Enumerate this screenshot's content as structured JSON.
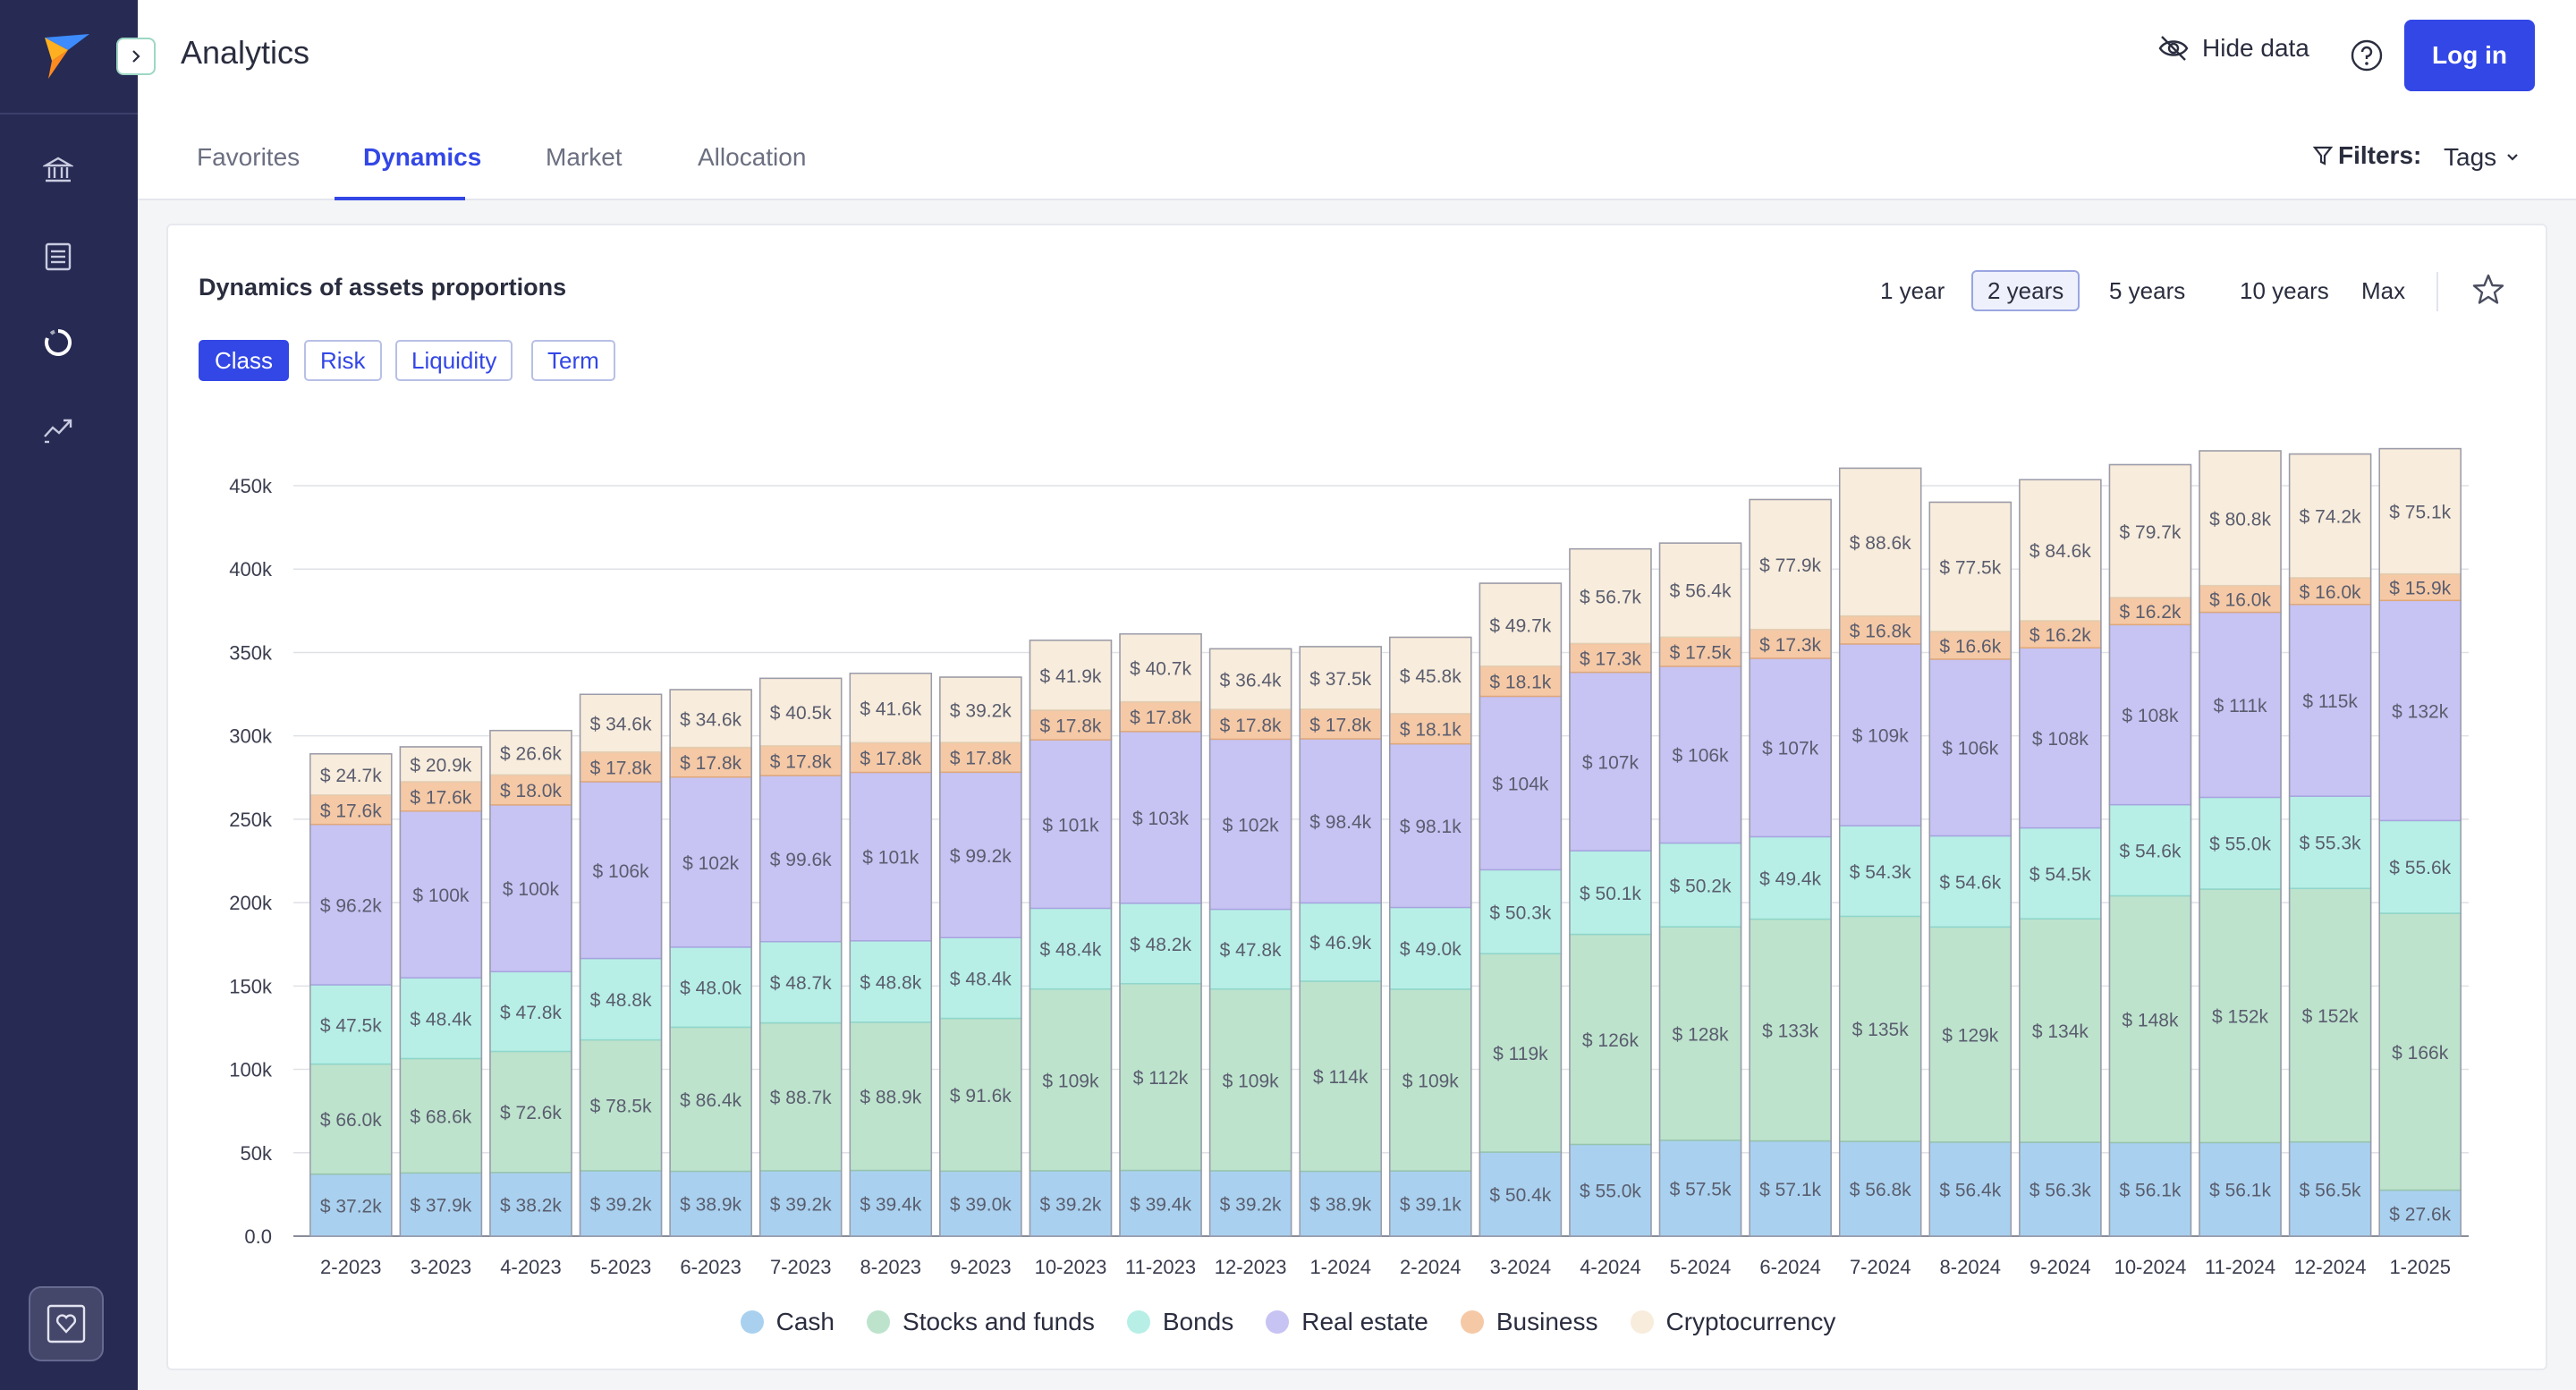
{
  "header": {
    "title": "Analytics",
    "hide_data": "Hide data",
    "login": "Log in"
  },
  "tabs": [
    {
      "label": "Favorites",
      "active": false
    },
    {
      "label": "Dynamics",
      "active": true
    },
    {
      "label": "Market",
      "active": false
    },
    {
      "label": "Allocation",
      "active": false
    }
  ],
  "filters": {
    "label": "Filters:",
    "tags": "Tags"
  },
  "card": {
    "title": "Dynamics of assets proportions",
    "periods": [
      {
        "label": "1 year",
        "active": false
      },
      {
        "label": "2 years",
        "active": true
      },
      {
        "label": "5 years",
        "active": false
      },
      {
        "label": "10 years",
        "active": false
      },
      {
        "label": "Max",
        "active": false
      }
    ],
    "segments": [
      {
        "label": "Class",
        "active": true
      },
      {
        "label": "Risk",
        "active": false
      },
      {
        "label": "Liquidity",
        "active": false
      },
      {
        "label": "Term",
        "active": false
      }
    ]
  },
  "sidebar": {
    "icons": [
      "bank-icon",
      "list-icon",
      "pie-chart-icon",
      "trend-icon"
    ],
    "bottom_icon": "heart-shield-icon"
  },
  "colors": {
    "accent": "#3347e6",
    "sidebar": "#272a52",
    "series": [
      "#a9d1ef",
      "#bde3cd",
      "#b7efe6",
      "#c7c3f3",
      "#f5c9a6",
      "#f8ecdc"
    ]
  },
  "chart_data": {
    "type": "bar",
    "stacked": true,
    "categories": [
      "2-2023",
      "3-2023",
      "4-2023",
      "5-2023",
      "6-2023",
      "7-2023",
      "8-2023",
      "9-2023",
      "10-2023",
      "11-2023",
      "12-2023",
      "1-2024",
      "2-2024",
      "3-2024",
      "4-2024",
      "5-2024",
      "6-2024",
      "7-2024",
      "8-2024",
      "9-2024",
      "10-2024",
      "11-2024",
      "12-2024",
      "1-2025"
    ],
    "y_ticks": [
      "0.0",
      "50k",
      "100k",
      "150k",
      "200k",
      "250k",
      "300k",
      "350k",
      "400k",
      "450k"
    ],
    "ylim": [
      0,
      450000
    ],
    "grid": true,
    "legend": "bottom",
    "series": [
      {
        "name": "Cash",
        "values": [
          37200,
          37900,
          38200,
          39200,
          38900,
          39200,
          39400,
          39000,
          39200,
          39400,
          39200,
          38900,
          39100,
          50400,
          55000,
          57500,
          57100,
          56800,
          56400,
          56300,
          56100,
          56100,
          56500,
          27600
        ],
        "labels": [
          "$ 37.2k",
          "$ 37.9k",
          "$ 38.2k",
          "$ 39.2k",
          "$ 38.9k",
          "$ 39.2k",
          "$ 39.4k",
          "$ 39.0k",
          "$ 39.2k",
          "$ 39.4k",
          "$ 39.2k",
          "$ 38.9k",
          "$ 39.1k",
          "$ 50.4k",
          "$ 55.0k",
          "$ 57.5k",
          "$ 57.1k",
          "$ 56.8k",
          "$ 56.4k",
          "$ 56.3k",
          "$ 56.1k",
          "$ 56.1k",
          "$ 56.5k",
          "$ 27.6k"
        ]
      },
      {
        "name": "Stocks and funds",
        "values": [
          66000,
          68600,
          72600,
          78500,
          86400,
          88700,
          88900,
          91600,
          109000,
          112000,
          109000,
          114000,
          109000,
          119000,
          126000,
          128000,
          133000,
          135000,
          129000,
          134000,
          148000,
          152000,
          152000,
          166000
        ],
        "labels": [
          "$ 66.0k",
          "$ 68.6k",
          "$ 72.6k",
          "$ 78.5k",
          "$ 86.4k",
          "$ 88.7k",
          "$ 88.9k",
          "$ 91.6k",
          "$ 109k",
          "$ 112k",
          "$ 109k",
          "$ 114k",
          "$ 109k",
          "$ 119k",
          "$ 126k",
          "$ 128k",
          "$ 133k",
          "$ 135k",
          "$ 129k",
          "$ 134k",
          "$ 148k",
          "$ 152k",
          "$ 152k",
          "$ 166k"
        ]
      },
      {
        "name": "Bonds",
        "values": [
          47500,
          48400,
          47800,
          48800,
          48000,
          48700,
          48800,
          48400,
          48400,
          48200,
          47800,
          46900,
          49000,
          50300,
          50100,
          50200,
          49400,
          54300,
          54600,
          54500,
          54600,
          55000,
          55300,
          55600
        ],
        "labels": [
          "$ 47.5k",
          "$ 48.4k",
          "$ 47.8k",
          "$ 48.8k",
          "$ 48.0k",
          "$ 48.7k",
          "$ 48.8k",
          "$ 48.4k",
          "$ 48.4k",
          "$ 48.2k",
          "$ 47.8k",
          "$ 46.9k",
          "$ 49.0k",
          "$ 50.3k",
          "$ 50.1k",
          "$ 50.2k",
          "$ 49.4k",
          "$ 54.3k",
          "$ 54.6k",
          "$ 54.5k",
          "$ 54.6k",
          "$ 55.0k",
          "$ 55.3k",
          "$ 55.6k"
        ]
      },
      {
        "name": "Real estate",
        "values": [
          96200,
          100000,
          100000,
          106000,
          102000,
          99600,
          101000,
          99200,
          101000,
          103000,
          102000,
          98400,
          98100,
          104000,
          107000,
          106000,
          107000,
          109000,
          106000,
          108000,
          108000,
          111000,
          115000,
          132000
        ],
        "labels": [
          "$ 96.2k",
          "$ 100k",
          "$ 100k",
          "$ 106k",
          "$ 102k",
          "$ 99.6k",
          "$ 101k",
          "$ 99.2k",
          "$ 101k",
          "$ 103k",
          "$ 102k",
          "$ 98.4k",
          "$ 98.1k",
          "$ 104k",
          "$ 107k",
          "$ 106k",
          "$ 107k",
          "$ 109k",
          "$ 106k",
          "$ 108k",
          "$ 108k",
          "$ 111k",
          "$ 115k",
          "$ 132k"
        ]
      },
      {
        "name": "Business",
        "values": [
          17600,
          17600,
          18000,
          17800,
          17800,
          17800,
          17800,
          17800,
          17800,
          17800,
          17800,
          17800,
          18100,
          18100,
          17300,
          17500,
          17300,
          16800,
          16600,
          16200,
          16200,
          16000,
          16000,
          15900
        ],
        "labels": [
          "$ 17.6k",
          "$ 17.6k",
          "$ 18.0k",
          "$ 17.8k",
          "$ 17.8k",
          "$ 17.8k",
          "$ 17.8k",
          "$ 17.8k",
          "$ 17.8k",
          "$ 17.8k",
          "$ 17.8k",
          "$ 17.8k",
          "$ 18.1k",
          "$ 18.1k",
          "$ 17.3k",
          "$ 17.5k",
          "$ 17.3k",
          "$ 16.8k",
          "$ 16.6k",
          "$ 16.2k",
          "$ 16.2k",
          "$ 16.0k",
          "$ 16.0k",
          "$ 15.9k"
        ]
      },
      {
        "name": "Cryptocurrency",
        "values": [
          24700,
          20900,
          26600,
          34600,
          34600,
          40500,
          41600,
          39200,
          41900,
          40700,
          36400,
          37500,
          45800,
          49700,
          56700,
          56400,
          77900,
          88600,
          77500,
          84600,
          79700,
          80800,
          74200,
          75100
        ],
        "labels": [
          "$ 24.7k",
          "$ 20.9k",
          "$ 26.6k",
          "$ 34.6k",
          "$ 34.6k",
          "$ 40.5k",
          "$ 41.6k",
          "$ 39.2k",
          "$ 41.9k",
          "$ 40.7k",
          "$ 36.4k",
          "$ 37.5k",
          "$ 45.8k",
          "$ 49.7k",
          "$ 56.7k",
          "$ 56.4k",
          "$ 77.9k",
          "$ 88.6k",
          "$ 77.5k",
          "$ 84.6k",
          "$ 79.7k",
          "$ 80.8k",
          "$ 74.2k",
          "$ 75.1k"
        ]
      }
    ]
  }
}
